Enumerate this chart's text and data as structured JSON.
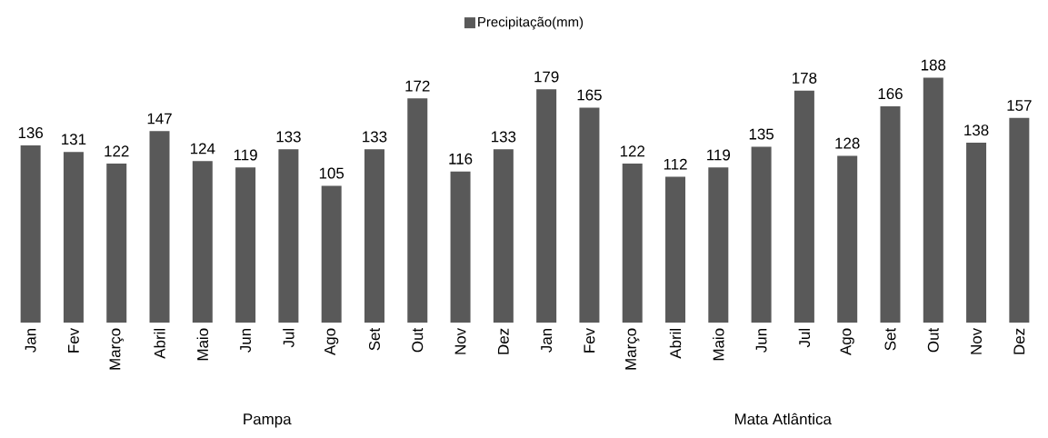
{
  "chart_data": {
    "type": "bar",
    "categories": [
      "Jan",
      "Fev",
      "Março",
      "Abril",
      "Maio",
      "Jun",
      "Jul",
      "Ago",
      "Set",
      "Out",
      "Nov",
      "Dez",
      "Jan",
      "Fev",
      "Março",
      "Abril",
      "Maio",
      "Jun",
      "Jul",
      "Ago",
      "Set",
      "Out",
      "Nov",
      "Dez"
    ],
    "series": [
      {
        "name": "Precipitação(mm)",
        "color": "#595959",
        "values": [
          136,
          131,
          122,
          147,
          124,
          119,
          133,
          105,
          133,
          172,
          116,
          133,
          179,
          165,
          122,
          112,
          119,
          135,
          178,
          128,
          166,
          188,
          138,
          157
        ]
      }
    ],
    "data_labels": true,
    "legend": "top",
    "annotations": [
      "Pampa",
      "Mata Atlântica"
    ]
  }
}
